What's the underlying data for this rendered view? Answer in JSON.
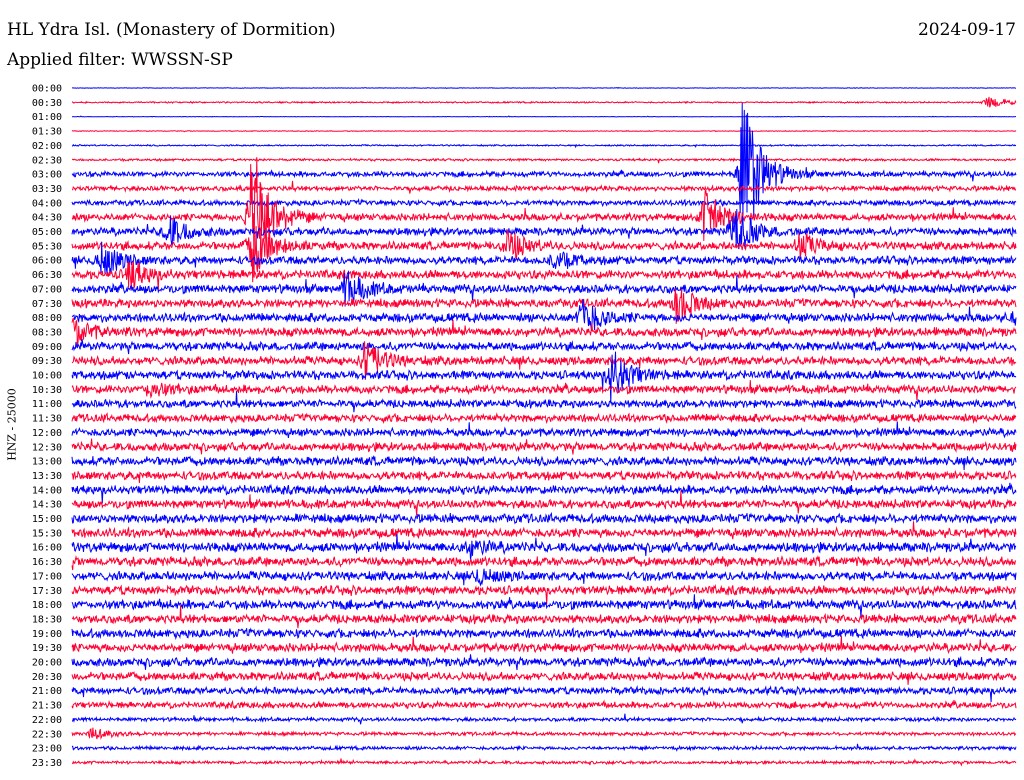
{
  "header": {
    "station_title": "HL Ydra Isl. (Monastery of Dormition)",
    "date": "2024-09-17",
    "filter_label": "Applied filter: WWSSN-SP"
  },
  "chart_data": {
    "type": "line",
    "title": "HL Ydra Isl. (Monastery of Dormition)",
    "ylabel": "HNZ - 25000",
    "trace_colors": [
      "#0000ff",
      "#ff0033"
    ],
    "categories": [
      "00:00",
      "00:30",
      "01:00",
      "01:30",
      "02:00",
      "02:30",
      "03:00",
      "03:30",
      "04:00",
      "04:30",
      "05:00",
      "05:30",
      "06:00",
      "06:30",
      "07:00",
      "07:30",
      "08:00",
      "08:30",
      "09:00",
      "09:30",
      "10:00",
      "10:30",
      "11:00",
      "11:30",
      "12:00",
      "12:30",
      "13:00",
      "13:30",
      "14:00",
      "14:30",
      "15:00",
      "15:30",
      "16:00",
      "16:30",
      "17:00",
      "17:30",
      "18:00",
      "18:30",
      "19:00",
      "19:30",
      "20:00",
      "20:30",
      "21:00",
      "21:30",
      "22:00",
      "22:30",
      "23:00",
      "23:30"
    ],
    "noise_level": [
      0.2,
      0.6,
      0.2,
      0.3,
      0.6,
      0.9,
      2.2,
      2.0,
      2.2,
      3.0,
      3.2,
      3.3,
      3.4,
      3.6,
      3.6,
      3.5,
      3.6,
      3.7,
      3.5,
      3.6,
      3.6,
      3.4,
      3.3,
      3.2,
      3.3,
      3.5,
      3.6,
      3.6,
      3.6,
      3.6,
      3.7,
      3.8,
      4.0,
      3.8,
      3.7,
      3.7,
      3.8,
      3.6,
      3.6,
      3.6,
      3.6,
      3.4,
      3.0,
      2.6,
      1.5,
      1.4,
      1.4,
      1.2
    ],
    "events": [
      {
        "row": 1,
        "x": 0.97,
        "amp": 7
      },
      {
        "row": 6,
        "x": 0.71,
        "amp": 90
      },
      {
        "row": 9,
        "x": 0.19,
        "amp": 80
      },
      {
        "row": 9,
        "x": 0.67,
        "amp": 30
      },
      {
        "row": 10,
        "x": 0.1,
        "amp": 18
      },
      {
        "row": 10,
        "x": 0.7,
        "amp": 30
      },
      {
        "row": 11,
        "x": 0.19,
        "amp": 35
      },
      {
        "row": 11,
        "x": 0.46,
        "amp": 18
      },
      {
        "row": 11,
        "x": 0.77,
        "amp": 14
      },
      {
        "row": 12,
        "x": 0.03,
        "amp": 18
      },
      {
        "row": 12,
        "x": 0.51,
        "amp": 10
      },
      {
        "row": 13,
        "x": 0.06,
        "amp": 16
      },
      {
        "row": 14,
        "x": 0.29,
        "amp": 20
      },
      {
        "row": 15,
        "x": 0.64,
        "amp": 22
      },
      {
        "row": 16,
        "x": 0.54,
        "amp": 22
      },
      {
        "row": 16,
        "x": 1.0,
        "amp": 14
      },
      {
        "row": 17,
        "x": 0.0,
        "amp": 14
      },
      {
        "row": 19,
        "x": 0.31,
        "amp": 20
      },
      {
        "row": 20,
        "x": 0.57,
        "amp": 28
      },
      {
        "row": 21,
        "x": 0.08,
        "amp": 9
      },
      {
        "row": 34,
        "x": 0.43,
        "amp": 8
      },
      {
        "row": 32,
        "x": 0.42,
        "amp": 8
      },
      {
        "row": 45,
        "x": 0.02,
        "amp": 6
      }
    ]
  }
}
